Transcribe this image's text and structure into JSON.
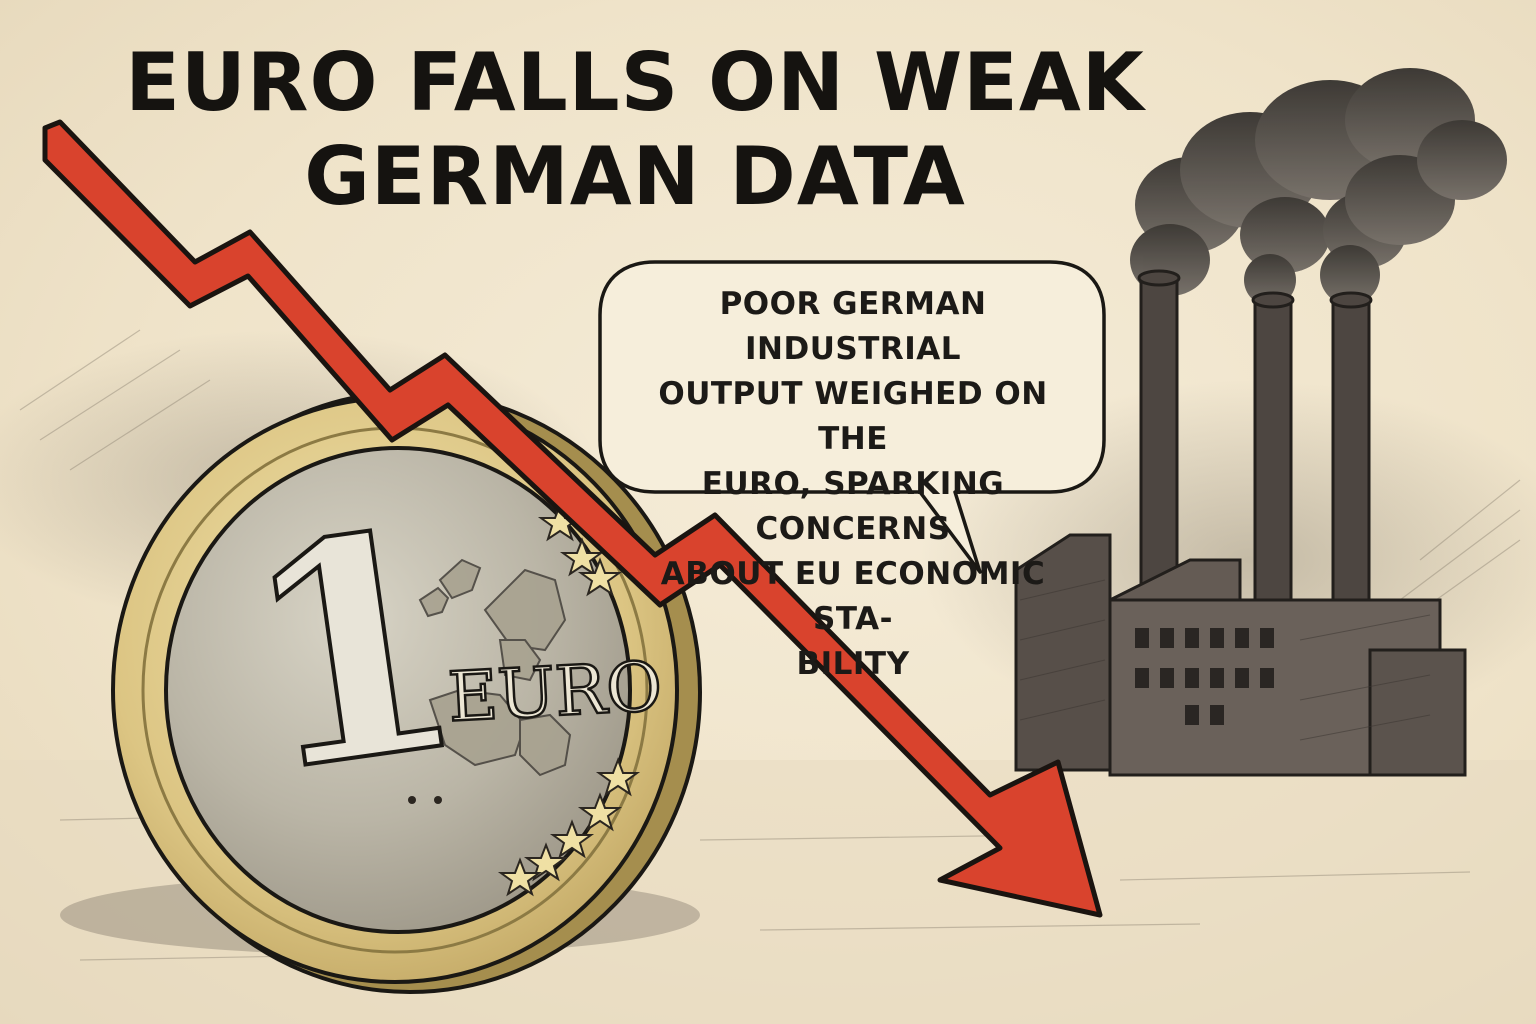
{
  "headline": {
    "line1": "EURO FALLS ON WEAK",
    "line2": "GERMAN DATA"
  },
  "speech_bubble": {
    "lines": [
      "POOR GERMAN INDUSTRIAL",
      "OUTPUT WEIGHED ON THE",
      "EURO, SPARKING CONCERNS",
      "ABOUT EU ECONOMIC STA-",
      "BILITY"
    ]
  },
  "coin": {
    "denomination": "1",
    "currency": "EURO"
  },
  "colors": {
    "arrow": "#d9432d",
    "ink": "#151310",
    "paper": "#f1e6cf",
    "coin_ring": "#e3cf8e",
    "coin_center": "#bdb8a8",
    "factory": "#5f5650",
    "smoke": "#3e3b38"
  },
  "icons": {
    "arrow": "falling-trend-arrow-icon",
    "coin": "euro-coin-icon",
    "factory": "factory-icon"
  }
}
